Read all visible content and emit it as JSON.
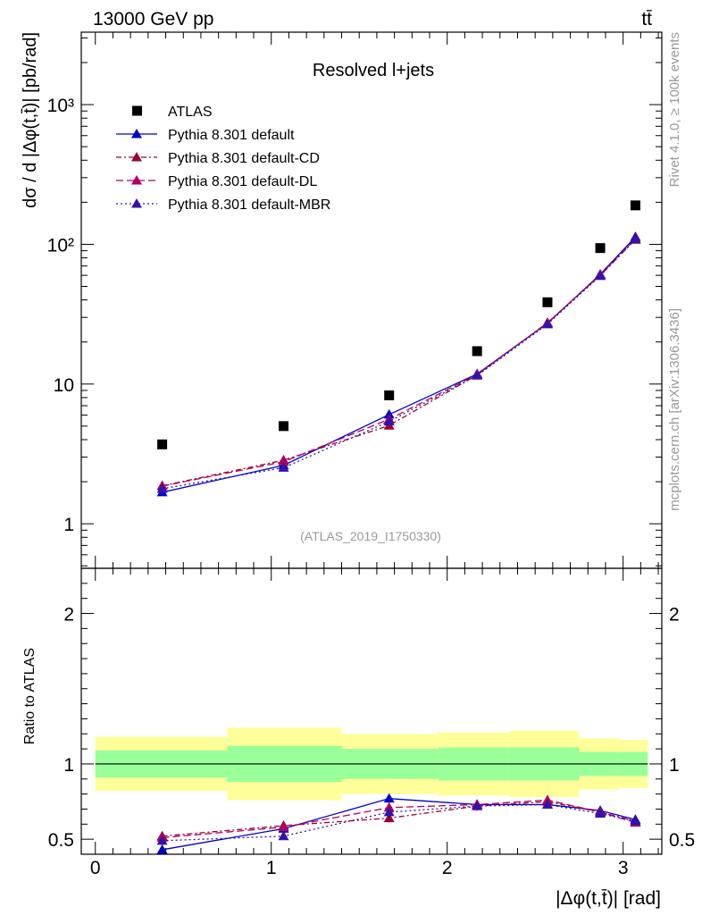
{
  "header": {
    "energy_label": "13000 GeV pp",
    "process_label": "tt̄",
    "side_label_top": "Rivet 4.1.0, ≥ 100k events",
    "side_label_bottom": "mcplots.cern.ch [arXiv:1306.3436]",
    "analysis_id": "(ATLAS_2019_I1750330)"
  },
  "chart_data": {
    "type": "line",
    "title": "Resolved l+jets",
    "xlabel": "|Δφ(t,t̄)| [rad]",
    "ylabel": "dσ / d |Δφ(t,t̄)| [pb/rad]",
    "ratio_ylabel": "Ratio to ATLAS",
    "xlim": [
      -0.08,
      3.22
    ],
    "ylim": [
      0.48,
      3300
    ],
    "yscale": "log",
    "ratio_ylim": [
      0.4,
      2.3
    ],
    "x_ticks": [
      0,
      1,
      2,
      3
    ],
    "x_tick_labels": [
      "0",
      "1",
      "2",
      "3"
    ],
    "y_ticks": [
      1,
      10,
      100,
      1000
    ],
    "y_tick_labels": [
      "1",
      "10",
      "10²",
      "10³"
    ],
    "ratio_ticks": [
      0.5,
      1,
      2
    ],
    "ratio_tick_labels": [
      "0.5",
      "1",
      "2"
    ],
    "x": [
      0.38,
      1.07,
      1.67,
      2.17,
      2.57,
      2.87,
      3.07
    ],
    "bin_edges": [
      0,
      0.75,
      1.4,
      1.95,
      2.35,
      2.75,
      2.97,
      3.14
    ],
    "reference": {
      "name": "ATLAS",
      "color": "#000000",
      "values": [
        3.7,
        5.0,
        8.3,
        17.2,
        38.5,
        94,
        190
      ]
    },
    "band_outer": [
      {
        "lo": 0.82,
        "hi": 1.18
      },
      {
        "lo": 0.76,
        "hi": 1.24
      },
      {
        "lo": 0.8,
        "hi": 1.2
      },
      {
        "lo": 0.79,
        "hi": 1.21
      },
      {
        "lo": 0.78,
        "hi": 1.22
      },
      {
        "lo": 0.83,
        "hi": 1.17
      },
      {
        "lo": 0.84,
        "hi": 1.16
      }
    ],
    "band_inner": [
      {
        "lo": 0.91,
        "hi": 1.09
      },
      {
        "lo": 0.88,
        "hi": 1.12
      },
      {
        "lo": 0.9,
        "hi": 1.1
      },
      {
        "lo": 0.89,
        "hi": 1.11
      },
      {
        "lo": 0.89,
        "hi": 1.11
      },
      {
        "lo": 0.92,
        "hi": 1.08
      },
      {
        "lo": 0.92,
        "hi": 1.08
      }
    ],
    "band_colors": {
      "outer": "#ffff99",
      "inner": "#99ff99"
    },
    "series": [
      {
        "name": "Pythia 8.301 default",
        "color": "#0000cc",
        "dash": "",
        "values": [
          1.68,
          2.62,
          6.05,
          11.8,
          27.2,
          61,
          113
        ],
        "ratio": [
          0.43,
          0.57,
          0.77,
          0.73,
          0.73,
          0.69,
          0.63
        ]
      },
      {
        "name": "Pythia 8.301 default-CD",
        "color": "#990033",
        "dash": "6,3,2,3",
        "values": [
          1.87,
          2.85,
          5.05,
          11.6,
          27.5,
          60,
          108
        ],
        "ratio": [
          0.52,
          0.59,
          0.64,
          0.72,
          0.75,
          0.68,
          0.62
        ]
      },
      {
        "name": "Pythia 8.301 default-DL",
        "color": "#b00060",
        "dash": "8,4",
        "values": [
          1.86,
          2.78,
          5.6,
          11.7,
          27.4,
          60.5,
          110
        ],
        "ratio": [
          0.51,
          0.58,
          0.71,
          0.73,
          0.76,
          0.68,
          0.61
        ]
      },
      {
        "name": "Pythia 8.301 default-MBR",
        "color": "#3311aa",
        "dash": "2,3",
        "values": [
          1.78,
          2.52,
          5.4,
          11.5,
          26.8,
          59.5,
          109
        ],
        "ratio": [
          0.49,
          0.52,
          0.68,
          0.72,
          0.73,
          0.67,
          0.62
        ]
      }
    ],
    "ratio_errors": [
      0.03,
      0.025,
      0.03,
      0.03,
      0.02,
      0.015,
      0.015
    ]
  }
}
